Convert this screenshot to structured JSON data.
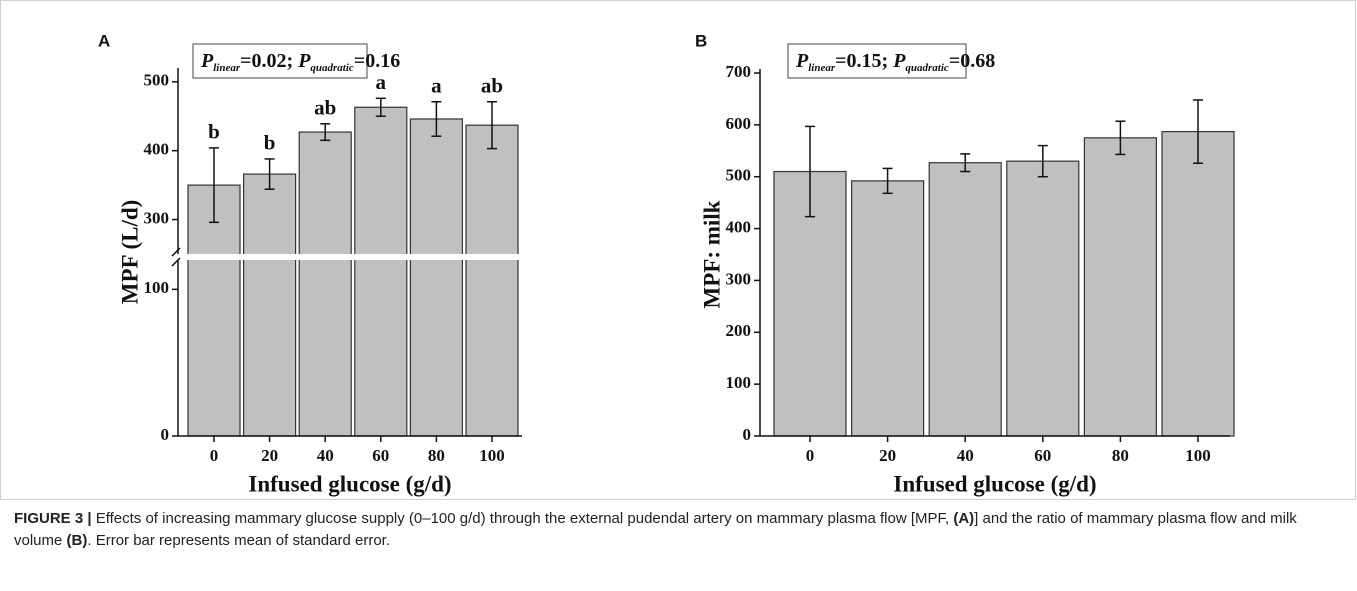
{
  "chart_data": [
    {
      "type": "bar",
      "label": "A",
      "annotation": [
        {
          "text": "P",
          "style": "italic"
        },
        {
          "text": "linear",
          "style": "sub"
        },
        {
          "text": "=0.02; ",
          "style": "normal"
        },
        {
          "text": "P",
          "style": "italic"
        },
        {
          "text": "quadratic",
          "style": "sub"
        },
        {
          "text": "=0.16",
          "style": "normal"
        }
      ],
      "x_label": "Infused glucose (g/d)",
      "y_label": "MPF (L/d)",
      "categories": [
        "0",
        "20",
        "40",
        "60",
        "80",
        "100"
      ],
      "values": [
        350,
        366,
        427,
        463,
        446,
        437
      ],
      "errors": [
        54,
        22,
        12,
        13,
        25,
        34
      ],
      "bar_labels": [
        "b",
        "b",
        "ab",
        "a",
        "a",
        "ab"
      ],
      "color": "#c0c0c0",
      "ylim": [
        0,
        520
      ],
      "y_break": [
        120,
        250
      ],
      "yticks": [
        0,
        100,
        300,
        400,
        500
      ]
    },
    {
      "type": "bar",
      "label": "B",
      "annotation": [
        {
          "text": "P",
          "style": "italic"
        },
        {
          "text": "linear",
          "style": "sub"
        },
        {
          "text": "=0.15; ",
          "style": "normal"
        },
        {
          "text": "P",
          "style": "italic"
        },
        {
          "text": "quadratic",
          "style": "sub"
        },
        {
          "text": "=0.68",
          "style": "normal"
        }
      ],
      "x_label": "Infused glucose (g/d)",
      "y_label": "MPF: milk",
      "categories": [
        "0",
        "20",
        "40",
        "60",
        "80",
        "100"
      ],
      "values": [
        510,
        492,
        527,
        530,
        575,
        587
      ],
      "errors": [
        87,
        24,
        17,
        30,
        32,
        61
      ],
      "color": "#c0c0c0",
      "ylim": [
        0,
        700
      ],
      "yticks": [
        0,
        100,
        200,
        300,
        400,
        500,
        600,
        700
      ]
    }
  ],
  "caption": [
    {
      "text": "FIGURE 3 |",
      "bold": true
    },
    {
      "text": " Effects of increasing mammary glucose supply (0–100 g/d) through the external pudendal artery on mammary plasma flow [MPF, ",
      "bold": false
    },
    {
      "text": "(A)",
      "bold": true
    },
    {
      "text": "] and the ratio of mammary plasma flow and milk volume ",
      "bold": false
    },
    {
      "text": "(B)",
      "bold": true
    },
    {
      "text": ". Error bar represents mean of standard error.",
      "bold": false
    }
  ]
}
